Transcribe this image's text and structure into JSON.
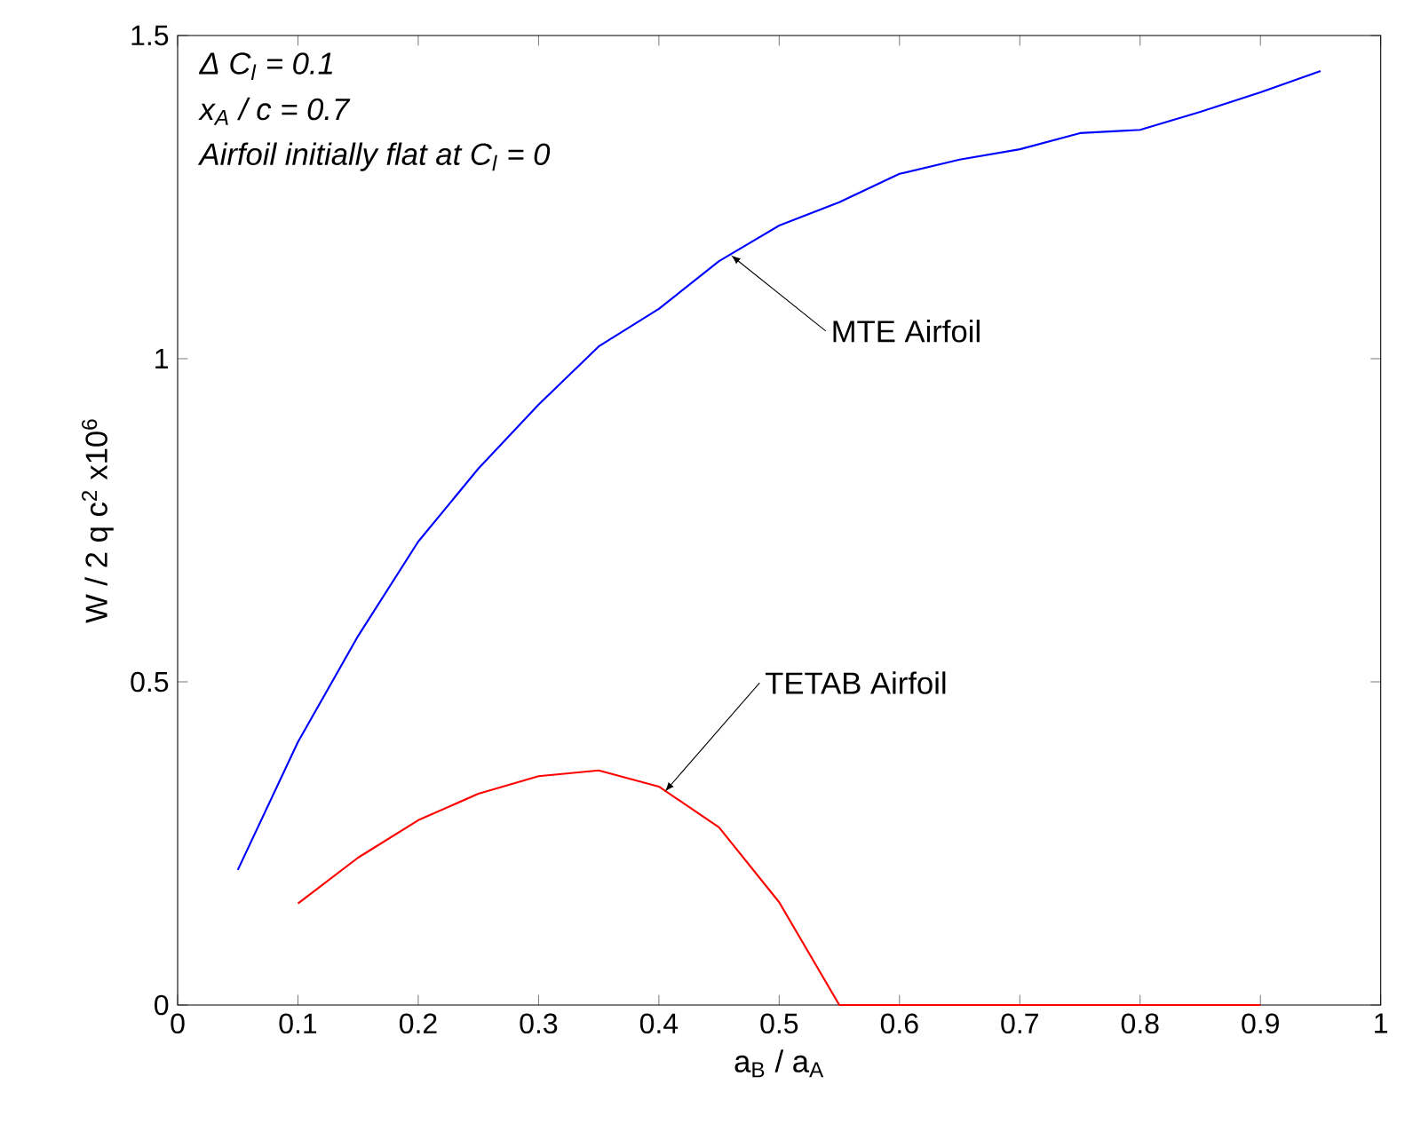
{
  "chart_data": {
    "type": "line",
    "xlabel": "a$_{B}$ / a$_{A}$",
    "ylabel": "W / 2 q c$^{2}$ x10$^{6}$",
    "xlim": [
      0,
      1
    ],
    "ylim": [
      0,
      1.5
    ],
    "xticks": [
      0,
      0.1,
      0.2,
      0.3,
      0.4,
      0.5,
      0.6,
      0.7,
      0.8,
      0.9,
      1
    ],
    "yticks": [
      0,
      0.5,
      1,
      1.5
    ],
    "grid": false,
    "series": [
      {
        "color": "#0000ff",
        "x": [
          0.05,
          0.1,
          0.15,
          0.2,
          0.25,
          0.3,
          0.35,
          0.4,
          0.45,
          0.5,
          0.55,
          0.6,
          0.65,
          0.7,
          0.75,
          0.8,
          0.85,
          0.9,
          0.95
        ],
        "values": [
          0.209,
          0.407,
          0.571,
          0.717,
          0.83,
          0.929,
          1.019,
          1.077,
          1.151,
          1.206,
          1.242,
          1.286,
          1.308,
          1.324,
          1.349,
          1.354,
          1.382,
          1.412,
          1.445
        ]
      },
      {
        "color": "#ff0000",
        "x": [
          0.1,
          0.15,
          0.2,
          0.25,
          0.3,
          0.35,
          0.4,
          0.45,
          0.5,
          0.55,
          0.6,
          0.65,
          0.7,
          0.75,
          0.8,
          0.85,
          0.9
        ],
        "values": [
          0.157,
          0.228,
          0.286,
          0.327,
          0.354,
          0.363,
          0.338,
          0.275,
          0.159,
          0,
          0,
          0,
          0,
          0,
          0,
          0,
          0
        ]
      }
    ],
    "annotations": [
      "Δ C$_{l}$ = 0.1",
      "x$_{A}$ / c = 0.7",
      "Airfoil initially flat at C$_{l}$ = 0",
      {
        "text": "MTE Airfoil",
        "x": 0.46,
        "y": 1.16
      },
      {
        "text": "TETAB Airfoil",
        "x": 0.405,
        "y": 0.33
      }
    ]
  }
}
